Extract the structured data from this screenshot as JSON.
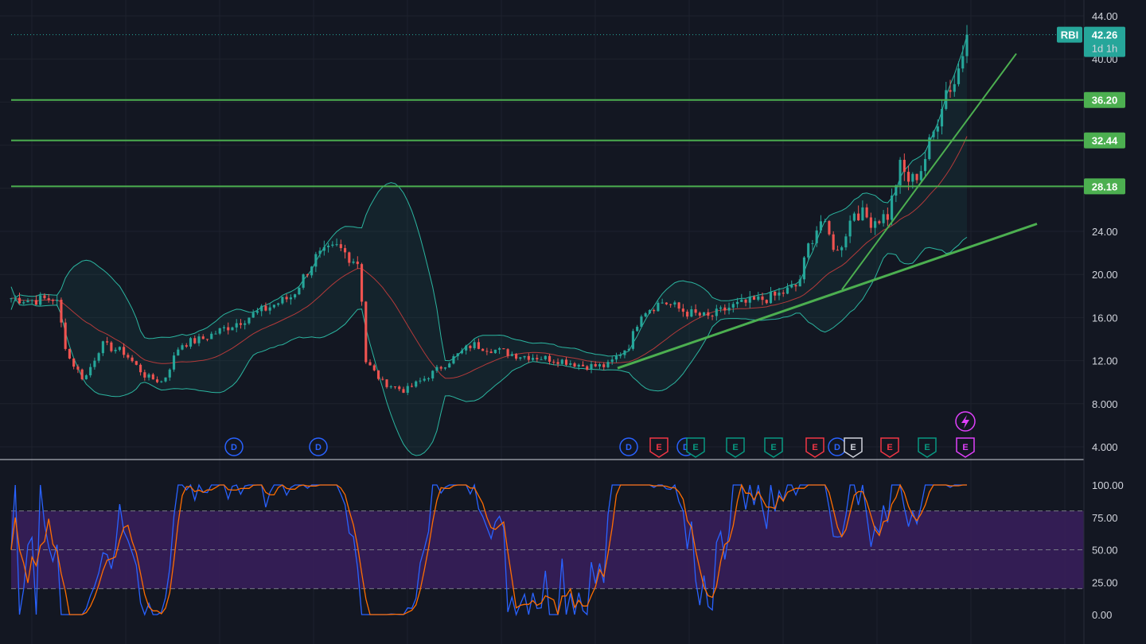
{
  "chart_data": {
    "type": "candlestick",
    "symbol": "RBI",
    "last_price": "42.26",
    "countdown": "1d 1h",
    "price_axis": {
      "ylim": [
        3.0,
        45.0
      ],
      "ticks": [
        "44.00",
        "40.00",
        "36.20",
        "32.44",
        "28.18",
        "24.00",
        "20.00",
        "16.00",
        "12.00",
        "8.000",
        "4.000"
      ]
    },
    "horizontal_levels": [
      {
        "value": 36.2,
        "label": "36.20"
      },
      {
        "value": 32.44,
        "label": "32.44"
      },
      {
        "value": 28.18,
        "label": "28.18"
      }
    ],
    "trend_lines": [
      {
        "from": {
          "bar": 0.533,
          "price": 11.3
        },
        "to": {
          "bar": 0.9,
          "price": 24.7
        }
      },
      {
        "from": {
          "bar": 0.735,
          "price": 18.6
        },
        "to": {
          "bar": 0.885,
          "price": 40.5
        }
      }
    ],
    "close_anchors": [
      [
        0,
        17.8
      ],
      [
        0.02,
        17.6
      ],
      [
        0.04,
        17.8
      ],
      [
        0.05,
        12.5
      ],
      [
        0.065,
        10.2
      ],
      [
        0.08,
        13.5
      ],
      [
        0.1,
        12.8
      ],
      [
        0.12,
        10.5
      ],
      [
        0.135,
        10.0
      ],
      [
        0.15,
        13.5
      ],
      [
        0.17,
        14.0
      ],
      [
        0.2,
        15.5
      ],
      [
        0.23,
        17.0
      ],
      [
        0.25,
        18.0
      ],
      [
        0.27,
        21.5
      ],
      [
        0.29,
        22.5
      ],
      [
        0.31,
        21.0
      ],
      [
        0.315,
        12.0
      ],
      [
        0.33,
        10.0
      ],
      [
        0.35,
        9.2
      ],
      [
        0.37,
        10.5
      ],
      [
        0.39,
        12.0
      ],
      [
        0.41,
        13.5
      ],
      [
        0.43,
        13.0
      ],
      [
        0.45,
        12.5
      ],
      [
        0.47,
        12.3
      ],
      [
        0.49,
        12.0
      ],
      [
        0.51,
        11.5
      ],
      [
        0.53,
        11.5
      ],
      [
        0.55,
        13.5
      ],
      [
        0.56,
        16.5
      ],
      [
        0.58,
        17.5
      ],
      [
        0.6,
        16.5
      ],
      [
        0.62,
        16.0
      ],
      [
        0.64,
        17.0
      ],
      [
        0.66,
        17.5
      ],
      [
        0.68,
        18.0
      ],
      [
        0.7,
        19.0
      ],
      [
        0.71,
        23.0
      ],
      [
        0.72,
        25.0
      ],
      [
        0.735,
        22.0
      ],
      [
        0.75,
        26.0
      ],
      [
        0.765,
        25.0
      ],
      [
        0.78,
        25.5
      ],
      [
        0.79,
        30.0
      ],
      [
        0.8,
        28.5
      ],
      [
        0.81,
        30.0
      ],
      [
        0.82,
        33.0
      ],
      [
        0.83,
        37.0
      ],
      [
        0.84,
        38.0
      ],
      [
        0.85,
        42.26
      ]
    ],
    "bollinger_band_width_factor": 1.0,
    "event_markers": {
      "row1": [
        {
          "type": "D",
          "bar": 0.195,
          "color": "#2962ff"
        },
        {
          "type": "D",
          "bar": 0.27,
          "color": "#2962ff"
        },
        {
          "type": "D",
          "bar": 0.535,
          "color": "#2962ff"
        },
        {
          "type": "E",
          "bar": 0.56,
          "color": "#f23645"
        },
        {
          "type": "D",
          "bar": 0.58,
          "color": "#2962ff"
        },
        {
          "type": "E",
          "bar": 0.592,
          "color": "#089981"
        },
        {
          "type": "E",
          "bar": 0.625,
          "color": "#089981"
        },
        {
          "type": "E",
          "bar": 0.658,
          "color": "#089981"
        },
        {
          "type": "E",
          "bar": 0.692,
          "color": "#f23645"
        },
        {
          "type": "D",
          "bar": 0.712,
          "color": "#2962ff"
        },
        {
          "type": "E",
          "bar": 0.725,
          "color": "#d1d4dc"
        },
        {
          "type": "E",
          "bar": 0.758,
          "color": "#f23645"
        },
        {
          "type": "E",
          "bar": 0.79,
          "color": "#089981"
        },
        {
          "type": "E",
          "bar": 0.823,
          "color": "#e040fb"
        }
      ],
      "flash": {
        "bar": 0.823,
        "color": "#e040fb",
        "icon": "lightning-icon"
      }
    },
    "stochastic": {
      "ylim": [
        -5,
        105
      ],
      "ticks": [
        "100.00",
        "75.00",
        "50.00",
        "25.00",
        "0.00"
      ],
      "overbought": 80,
      "oversold": 20,
      "k_color": "#2962ff",
      "d_color": "#ff6d00"
    },
    "colors": {
      "up": "#26a69a",
      "down": "#ef5350",
      "band": "#2bb5a0",
      "basis": "#b33a3a",
      "level_line": "#4caf50",
      "trend_line": "#4caf50",
      "stoch_fill": "#3a1f5d",
      "background": "#131722",
      "grid": "#1e222d"
    }
  }
}
